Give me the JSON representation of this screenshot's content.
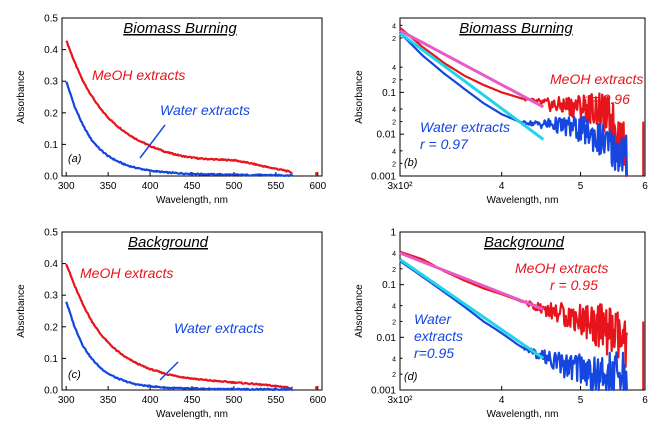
{
  "chart_data": [
    {
      "type": "line",
      "panel_label": "(a)",
      "title": "Biomass Burning",
      "xlabel": "Wavelength, nm",
      "ylabel": "Absorbance",
      "yscale": "linear",
      "xlim": [
        295,
        605
      ],
      "ylim": [
        0,
        0.5
      ],
      "xticks": [
        300,
        350,
        400,
        450,
        500,
        550,
        600
      ],
      "xtick_labels": [
        "300",
        "350",
        "400",
        "450",
        "500",
        "550",
        "600"
      ],
      "yticks": [
        0.0,
        0.1,
        0.2,
        0.3,
        0.4,
        0.5
      ],
      "ytick_labels": [
        "0.0",
        "0.1",
        "0.2",
        "0.3",
        "0.4",
        "0.5"
      ],
      "series": [
        {
          "name": "MeOH extracts",
          "color": "#e8141b",
          "x": [
            300,
            310,
            320,
            330,
            340,
            350,
            360,
            370,
            380,
            390,
            400,
            420,
            440,
            460,
            480,
            500,
            520,
            540,
            560,
            570
          ],
          "y": [
            0.43,
            0.36,
            0.3,
            0.255,
            0.215,
            0.185,
            0.16,
            0.14,
            0.122,
            0.108,
            0.095,
            0.075,
            0.062,
            0.055,
            0.052,
            0.05,
            0.04,
            0.028,
            0.018,
            0.01
          ]
        },
        {
          "name": "Water extracts",
          "color": "#1546e0",
          "x": [
            300,
            310,
            320,
            330,
            340,
            350,
            360,
            370,
            380,
            390,
            400,
            420,
            440,
            460,
            480,
            500,
            520,
            540,
            560,
            570
          ],
          "y": [
            0.3,
            0.22,
            0.16,
            0.115,
            0.085,
            0.063,
            0.048,
            0.036,
            0.028,
            0.022,
            0.017,
            0.011,
            0.008,
            0.006,
            0.005,
            0.004,
            0.003,
            0.003,
            0.002,
            0.002
          ]
        }
      ],
      "labels": [
        {
          "text": "MeOH extracts",
          "color": "#e8141b"
        },
        {
          "text": "Water extracts",
          "color": "#1546e0"
        }
      ]
    },
    {
      "type": "line",
      "panel_label": "(b)",
      "title": "Biomass Burning",
      "xlabel": "Wavelength, nm",
      "ylabel": "Absorbance",
      "xscale": "log",
      "yscale": "log",
      "xlim": [
        300,
        600
      ],
      "ylim": [
        0.001,
        6
      ],
      "xticks": [
        300,
        400,
        500,
        600
      ],
      "xtick_labels": [
        "3x10²",
        "4",
        "5",
        "6"
      ],
      "yticks": [
        0.001,
        0.01,
        0.1
      ],
      "ytick_labels": [
        "0.001",
        "0.01",
        "0.1"
      ],
      "minor_ytick_labels": {
        "2": [
          0.002,
          0.02,
          0.2,
          2
        ],
        "4": [
          0.004,
          0.04,
          0.4,
          4
        ]
      },
      "series": [
        {
          "name": "MeOH extracts",
          "color": "#e8141b",
          "x": [
            300,
            320,
            340,
            360,
            380,
            400,
            420,
            440,
            460,
            480,
            500,
            520,
            540,
            550,
            560,
            565,
            570
          ],
          "y": [
            3.5,
            1.2,
            0.5,
            0.25,
            0.15,
            0.1,
            0.075,
            0.06,
            0.052,
            0.05,
            0.05,
            0.045,
            0.03,
            0.02,
            0.01,
            0.006,
            0.003
          ]
        },
        {
          "name": "Water extracts",
          "color": "#1546e0",
          "x": [
            300,
            320,
            340,
            360,
            380,
            400,
            420,
            440,
            460,
            480,
            500,
            520,
            540,
            560,
            570
          ],
          "y": [
            2.6,
            0.75,
            0.28,
            0.12,
            0.055,
            0.03,
            0.02,
            0.018,
            0.018,
            0.016,
            0.014,
            0.01,
            0.006,
            0.004,
            0.003
          ]
        },
        {
          "name": "MeOH fit",
          "color": "#e85ac8",
          "x": [
            300,
            450
          ],
          "y": [
            3.0,
            0.045
          ]
        },
        {
          "name": "Water fit",
          "color": "#22d4e8",
          "x": [
            300,
            450
          ],
          "y": [
            2.6,
            0.0075
          ]
        }
      ],
      "labels": [
        {
          "text": "MeOH extracts",
          "color": "#e8141b"
        },
        {
          "text": "r = 0.96",
          "color": "#e8141b"
        },
        {
          "text": "Water extracts",
          "color": "#1546e0"
        },
        {
          "text": "r = 0.97",
          "color": "#1546e0"
        }
      ]
    },
    {
      "type": "line",
      "panel_label": "(c)",
      "title": "Background",
      "xlabel": "Wavelength, nm",
      "ylabel": "Absorbance",
      "yscale": "linear",
      "xlim": [
        295,
        605
      ],
      "ylim": [
        0,
        0.5
      ],
      "xticks": [
        300,
        350,
        400,
        450,
        500,
        550,
        600
      ],
      "xtick_labels": [
        "300",
        "350",
        "400",
        "450",
        "500",
        "550",
        "600"
      ],
      "yticks": [
        0.0,
        0.1,
        0.2,
        0.3,
        0.4,
        0.5
      ],
      "ytick_labels": [
        "0.0",
        "0.1",
        "0.2",
        "0.3",
        "0.4",
        "0.5"
      ],
      "series": [
        {
          "name": "MeOH extracts",
          "color": "#e8141b",
          "x": [
            300,
            310,
            320,
            330,
            340,
            350,
            360,
            370,
            380,
            390,
            400,
            420,
            440,
            460,
            480,
            500,
            520,
            540,
            560,
            570
          ],
          "y": [
            0.4,
            0.33,
            0.27,
            0.22,
            0.18,
            0.15,
            0.125,
            0.105,
            0.09,
            0.077,
            0.066,
            0.05,
            0.04,
            0.033,
            0.028,
            0.024,
            0.02,
            0.015,
            0.01,
            0.005
          ]
        },
        {
          "name": "Water extracts",
          "color": "#1546e0",
          "x": [
            300,
            310,
            320,
            330,
            340,
            350,
            360,
            370,
            380,
            390,
            400,
            420,
            440,
            460,
            480,
            500,
            520,
            540,
            560,
            570
          ],
          "y": [
            0.28,
            0.2,
            0.14,
            0.1,
            0.072,
            0.052,
            0.038,
            0.028,
            0.02,
            0.015,
            0.012,
            0.007,
            0.005,
            0.004,
            0.003,
            0.003,
            0.002,
            0.002,
            0.002,
            0.002
          ]
        }
      ],
      "labels": [
        {
          "text": "MeOH extracts",
          "color": "#e8141b"
        },
        {
          "text": "Water extracts",
          "color": "#1546e0"
        }
      ]
    },
    {
      "type": "line",
      "panel_label": "(d)",
      "title": "Background",
      "xlabel": "Wavelength, nm",
      "ylabel": "Absorbance",
      "xscale": "log",
      "yscale": "log",
      "xlim": [
        300,
        600
      ],
      "ylim": [
        0.001,
        1
      ],
      "xticks": [
        300,
        400,
        500,
        600
      ],
      "xtick_labels": [
        "3x10²",
        "4",
        "5",
        "6"
      ],
      "yticks": [
        0.001,
        0.01,
        0.1,
        1
      ],
      "ytick_labels": [
        "0.001",
        "0.01",
        "0.1",
        "1"
      ],
      "minor_ytick_labels": {
        "2": [
          0.002,
          0.02,
          0.2
        ],
        "4": [
          0.004,
          0.04,
          0.4
        ]
      },
      "series": [
        {
          "name": "MeOH extracts",
          "color": "#e8141b",
          "x": [
            300,
            320,
            340,
            360,
            380,
            400,
            420,
            440,
            460,
            480,
            500,
            520,
            540,
            560,
            570
          ],
          "y": [
            0.42,
            0.3,
            0.18,
            0.12,
            0.085,
            0.066,
            0.05,
            0.04,
            0.033,
            0.028,
            0.024,
            0.02,
            0.015,
            0.01,
            0.005
          ]
        },
        {
          "name": "Water extracts",
          "color": "#1546e0",
          "x": [
            300,
            320,
            340,
            360,
            380,
            400,
            420,
            440,
            460,
            480,
            500,
            520,
            540,
            560,
            570
          ],
          "y": [
            0.28,
            0.14,
            0.072,
            0.038,
            0.02,
            0.012,
            0.007,
            0.005,
            0.004,
            0.003,
            0.003,
            0.002,
            0.002,
            0.002,
            0.002
          ]
        },
        {
          "name": "MeOH fit",
          "color": "#e85ac8",
          "x": [
            300,
            450
          ],
          "y": [
            0.4,
            0.034
          ]
        },
        {
          "name": "Water fit",
          "color": "#22d4e8",
          "x": [
            300,
            450
          ],
          "y": [
            0.3,
            0.004
          ]
        }
      ],
      "labels": [
        {
          "text": "MeOH extracts",
          "color": "#e8141b"
        },
        {
          "text": "r = 0.95",
          "color": "#e8141b"
        },
        {
          "text": "Water",
          "color": "#1546e0"
        },
        {
          "text": "extracts",
          "color": "#1546e0"
        },
        {
          "text": "r=0.95",
          "color": "#1546e0"
        }
      ]
    }
  ]
}
